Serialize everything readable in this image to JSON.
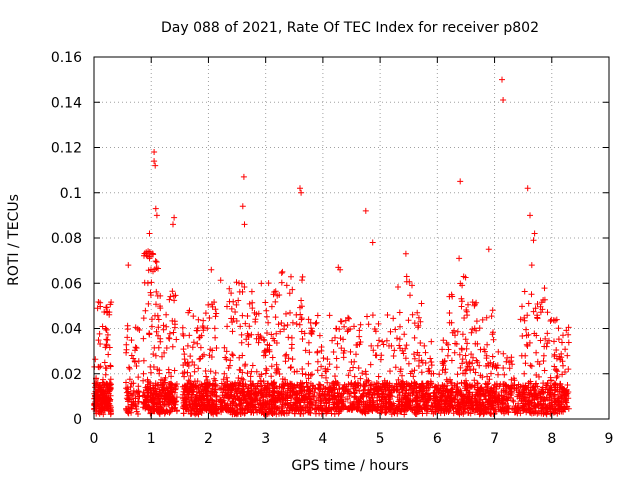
{
  "chart_data": {
    "type": "scatter",
    "title": "Day 088 of 2021, Rate Of TEC Index for receiver p802",
    "xlabel": "GPS time / hours",
    "ylabel": "ROTI / TECUs",
    "xlim": [
      0,
      9
    ],
    "ylim": [
      0,
      0.16
    ],
    "x_ticks": [
      "0",
      "1",
      "2",
      "3",
      "4",
      "5",
      "6",
      "7",
      "8",
      "9"
    ],
    "y_ticks": [
      "0",
      "0.02",
      "0.04",
      "0.06",
      "0.08",
      "0.1",
      "0.12",
      "0.14",
      "0.16"
    ],
    "grid": true,
    "marker": "+",
    "color": "#ff0000",
    "seed": 88,
    "notable_points": [
      {
        "x": 7.13,
        "y": 0.15
      },
      {
        "x": 7.15,
        "y": 0.141
      },
      {
        "x": 1.05,
        "y": 0.118
      },
      {
        "x": 1.05,
        "y": 0.114
      },
      {
        "x": 1.07,
        "y": 0.112
      },
      {
        "x": 2.62,
        "y": 0.107
      },
      {
        "x": 6.4,
        "y": 0.105
      },
      {
        "x": 7.58,
        "y": 0.102
      },
      {
        "x": 3.6,
        "y": 0.102
      },
      {
        "x": 3.62,
        "y": 0.1
      },
      {
        "x": 2.6,
        "y": 0.094
      },
      {
        "x": 1.08,
        "y": 0.093
      },
      {
        "x": 4.75,
        "y": 0.092
      },
      {
        "x": 1.1,
        "y": 0.09
      },
      {
        "x": 7.62,
        "y": 0.09
      },
      {
        "x": 1.4,
        "y": 0.089
      },
      {
        "x": 1.38,
        "y": 0.086
      },
      {
        "x": 2.63,
        "y": 0.086
      },
      {
        "x": 0.97,
        "y": 0.082
      },
      {
        "x": 7.7,
        "y": 0.082
      },
      {
        "x": 7.68,
        "y": 0.079
      },
      {
        "x": 4.87,
        "y": 0.078
      },
      {
        "x": 6.9,
        "y": 0.075
      },
      {
        "x": 5.45,
        "y": 0.073
      },
      {
        "x": 1.0,
        "y": 0.073
      },
      {
        "x": 0.97,
        "y": 0.071
      },
      {
        "x": 6.38,
        "y": 0.071
      },
      {
        "x": 0.6,
        "y": 0.068
      },
      {
        "x": 7.65,
        "y": 0.068
      },
      {
        "x": 4.27,
        "y": 0.067
      },
      {
        "x": 4.3,
        "y": 0.066
      },
      {
        "x": 2.05,
        "y": 0.066
      }
    ],
    "clusters": [
      {
        "x": [
          0.0,
          0.3
        ],
        "ymax": 0.052,
        "n": 230
      },
      {
        "x": [
          0.55,
          0.8
        ],
        "ymax": 0.047,
        "n": 80
      },
      {
        "x": [
          0.85,
          1.15
        ],
        "ymax": 0.075,
        "n": 180
      },
      {
        "x": [
          1.15,
          1.45
        ],
        "ymax": 0.058,
        "n": 170
      },
      {
        "x": [
          1.55,
          1.95
        ],
        "ymax": 0.05,
        "n": 220
      },
      {
        "x": [
          1.95,
          2.15
        ],
        "ymax": 0.056,
        "n": 120
      },
      {
        "x": [
          2.2,
          2.7
        ],
        "ymax": 0.065,
        "n": 260
      },
      {
        "x": [
          2.7,
          3.15
        ],
        "ymax": 0.062,
        "n": 240
      },
      {
        "x": [
          3.15,
          3.65
        ],
        "ymax": 0.065,
        "n": 250
      },
      {
        "x": [
          3.65,
          4.2
        ],
        "ymax": 0.048,
        "n": 220
      },
      {
        "x": [
          4.2,
          4.75
        ],
        "ymax": 0.045,
        "n": 220
      },
      {
        "x": [
          4.75,
          5.3
        ],
        "ymax": 0.046,
        "n": 230
      },
      {
        "x": [
          5.3,
          5.75
        ],
        "ymax": 0.064,
        "n": 220
      },
      {
        "x": [
          5.75,
          6.2
        ],
        "ymax": 0.036,
        "n": 200
      },
      {
        "x": [
          6.2,
          6.7
        ],
        "ymax": 0.065,
        "n": 250
      },
      {
        "x": [
          6.7,
          7.0
        ],
        "ymax": 0.05,
        "n": 150
      },
      {
        "x": [
          7.0,
          7.45
        ],
        "ymax": 0.03,
        "n": 150
      },
      {
        "x": [
          7.45,
          7.95
        ],
        "ymax": 0.058,
        "n": 220
      },
      {
        "x": [
          7.95,
          8.3
        ],
        "ymax": 0.044,
        "n": 160
      }
    ]
  }
}
